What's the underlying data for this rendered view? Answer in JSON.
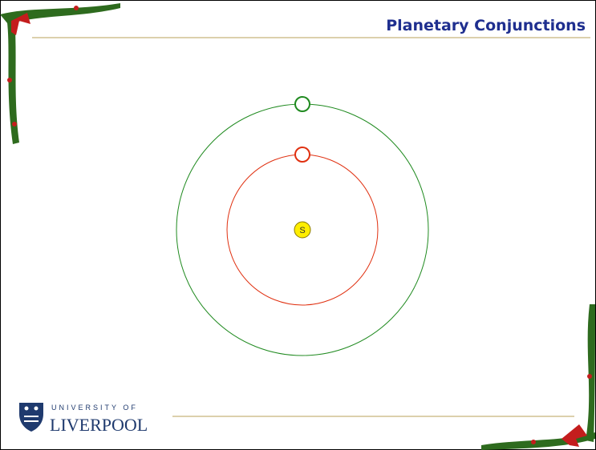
{
  "slide": {
    "title": "Planetary Conjunctions",
    "diagram": {
      "sun_label": "S"
    },
    "logo": {
      "line1": "UNIVERSITY OF",
      "line2": "LIVERPOOL"
    }
  }
}
